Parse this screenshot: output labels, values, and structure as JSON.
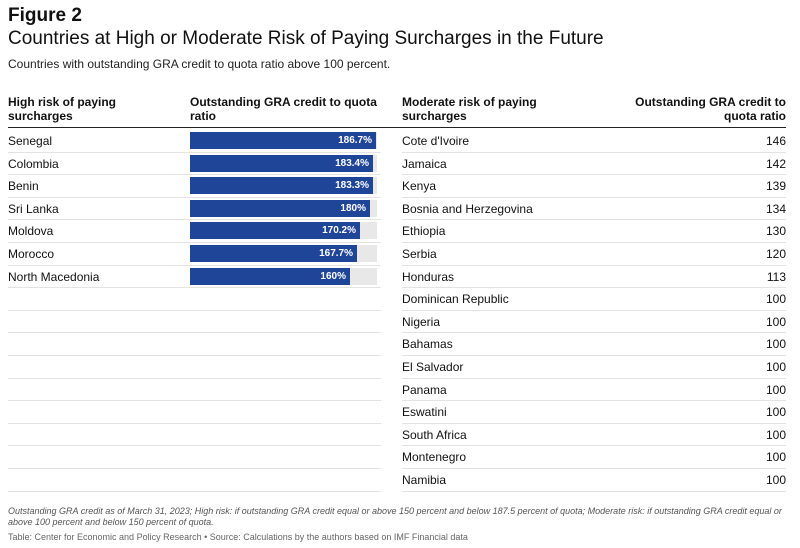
{
  "figure_label": "Figure 2",
  "title": "Countries at High or Moderate Risk of Paying Surcharges in the Future",
  "subtitle": "Countries with outstanding GRA credit to quota ratio above 100 percent.",
  "headers": {
    "high_country": "High risk of paying surcharges",
    "high_ratio": "Outstanding GRA credit to quota ratio",
    "moderate_country": "Moderate risk of paying surcharges",
    "moderate_ratio": "Outstanding GRA credit to quota ratio"
  },
  "colors": {
    "bar": "#1f4599",
    "track": "#e8e8e8"
  },
  "chart_data": {
    "type": "table",
    "title": "Countries at High or Moderate Risk of Paying Surcharges in the Future",
    "high_risk": {
      "bar_max": 187.5,
      "rows": [
        {
          "country": "Senegal",
          "value": 186.7,
          "label": "186.7%"
        },
        {
          "country": "Colombia",
          "value": 183.4,
          "label": "183.4%"
        },
        {
          "country": "Benin",
          "value": 183.3,
          "label": "183.3%"
        },
        {
          "country": "Sri Lanka",
          "value": 180,
          "label": "180%"
        },
        {
          "country": "Moldova",
          "value": 170.2,
          "label": "170.2%"
        },
        {
          "country": "Morocco",
          "value": 167.7,
          "label": "167.7%"
        },
        {
          "country": "North Macedonia",
          "value": 160,
          "label": "160%"
        }
      ]
    },
    "moderate_risk": {
      "rows": [
        {
          "country": "Cote d'Ivoire",
          "value": "146"
        },
        {
          "country": "Jamaica",
          "value": "142"
        },
        {
          "country": "Kenya",
          "value": "139"
        },
        {
          "country": "Bosnia and Herzegovina",
          "value": "134"
        },
        {
          "country": "Ethiopia",
          "value": "130"
        },
        {
          "country": "Serbia",
          "value": "120"
        },
        {
          "country": "Honduras",
          "value": "113"
        },
        {
          "country": "Dominican Republic",
          "value": "100"
        },
        {
          "country": "Nigeria",
          "value": "100"
        },
        {
          "country": "Bahamas",
          "value": "100"
        },
        {
          "country": "El Salvador",
          "value": "100"
        },
        {
          "country": "Panama",
          "value": "100"
        },
        {
          "country": "Eswatini",
          "value": "100"
        },
        {
          "country": "South Africa",
          "value": "100"
        },
        {
          "country": "Montenegro",
          "value": "100"
        },
        {
          "country": "Namibia",
          "value": "100"
        }
      ]
    }
  },
  "note": "Outstanding GRA credit as of March 31, 2023; High risk: if outstanding GRA credit equal or above 150 percent and below 187.5 percent of quota; Moderate risk: if outstanding GRA credit equal or above 100 percent and below 150 percent of quota.",
  "source": "Table: Center for Economic and Policy Research • Source: Calculations by the authors based on IMF Financial data"
}
